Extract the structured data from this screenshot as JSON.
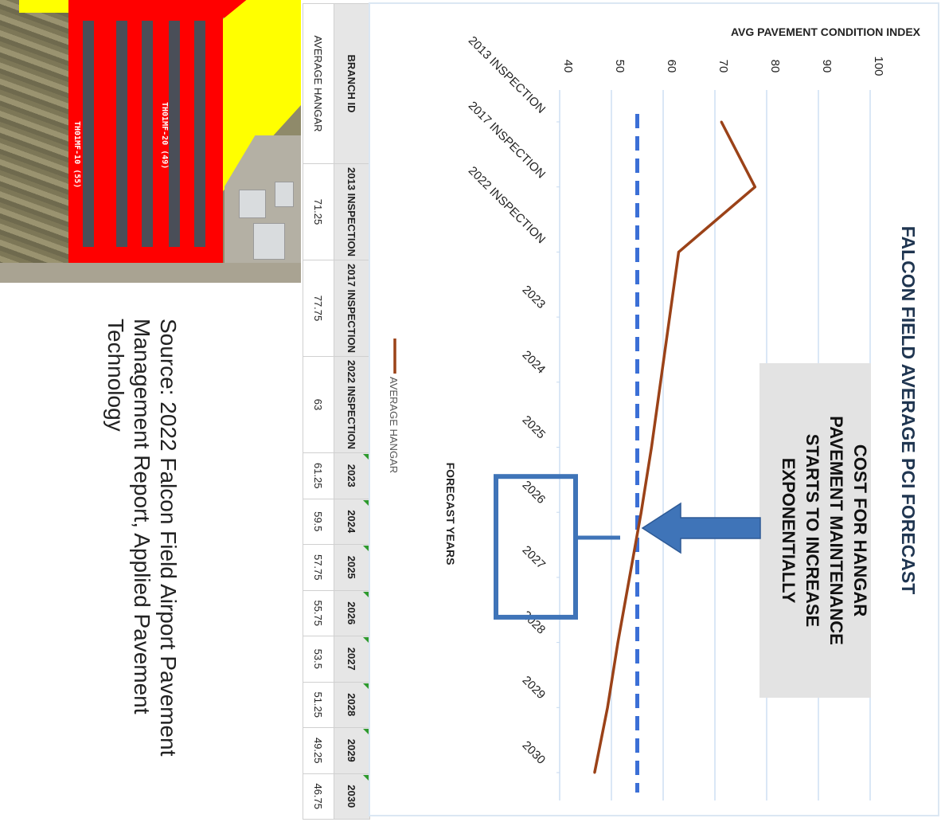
{
  "aerial": {
    "label_1": "TH01MF-20 (49)",
    "label_2": "TH01MF-10 (55)"
  },
  "table": {
    "headers": [
      "BRANCH ID",
      "2013 INSPECTION",
      "2017 INSPECTION",
      "2022 INSPECTION",
      "2023",
      "2024",
      "2025",
      "2026",
      "2027",
      "2028",
      "2029",
      "2030"
    ],
    "rows": [
      [
        "AVERAGE HANGAR",
        "71.25",
        "77.75",
        "63",
        "61.25",
        "59.5",
        "57.75",
        "55.75",
        "53.5",
        "51.25",
        "49.25",
        "46.75"
      ]
    ]
  },
  "source": "Source: 2022 Falcon Field Airport Pavement Management Report, Applied Pavement Technology",
  "callout": {
    "lines": [
      "COST FOR HANGAR",
      "PAVEMENT MAINTENANCE",
      "STARTS TO INCREASE",
      "EXPONENTIALLY"
    ],
    "box_color": "#e3e3e3",
    "arrow_color": "#3f74b8"
  },
  "chart_data": {
    "type": "line",
    "title": "FALCON FIELD AVERAGE PCI FORECAST",
    "xlabel": "FORECAST YEARS",
    "ylabel": "AVG PAVEMENT CONDITION INDEX",
    "categories": [
      "2013 INSPECTION",
      "2017 INSPECTION",
      "2022 INSPECTION",
      "2023",
      "2024",
      "2025",
      "2026",
      "2027",
      "2028",
      "2029",
      "2030"
    ],
    "series": [
      {
        "name": "AVERAGE HANGAR",
        "color": "#9b4218",
        "values": [
          71.25,
          77.75,
          63,
          61.25,
          59.5,
          57.75,
          55.75,
          53.5,
          51.25,
          49.25,
          46.75
        ]
      }
    ],
    "threshold": {
      "value": 55,
      "style": "dashed",
      "color": "#3b6fd6"
    },
    "highlight_categories": [
      "2026",
      "2027"
    ],
    "highlight_color": "#3f74b8",
    "ylim": [
      40,
      100
    ],
    "yticks": [
      40,
      50,
      60,
      70,
      80,
      90,
      100
    ],
    "grid": true,
    "legend_position": "bottom",
    "orientation": "rotated 90 degrees clockwise"
  }
}
